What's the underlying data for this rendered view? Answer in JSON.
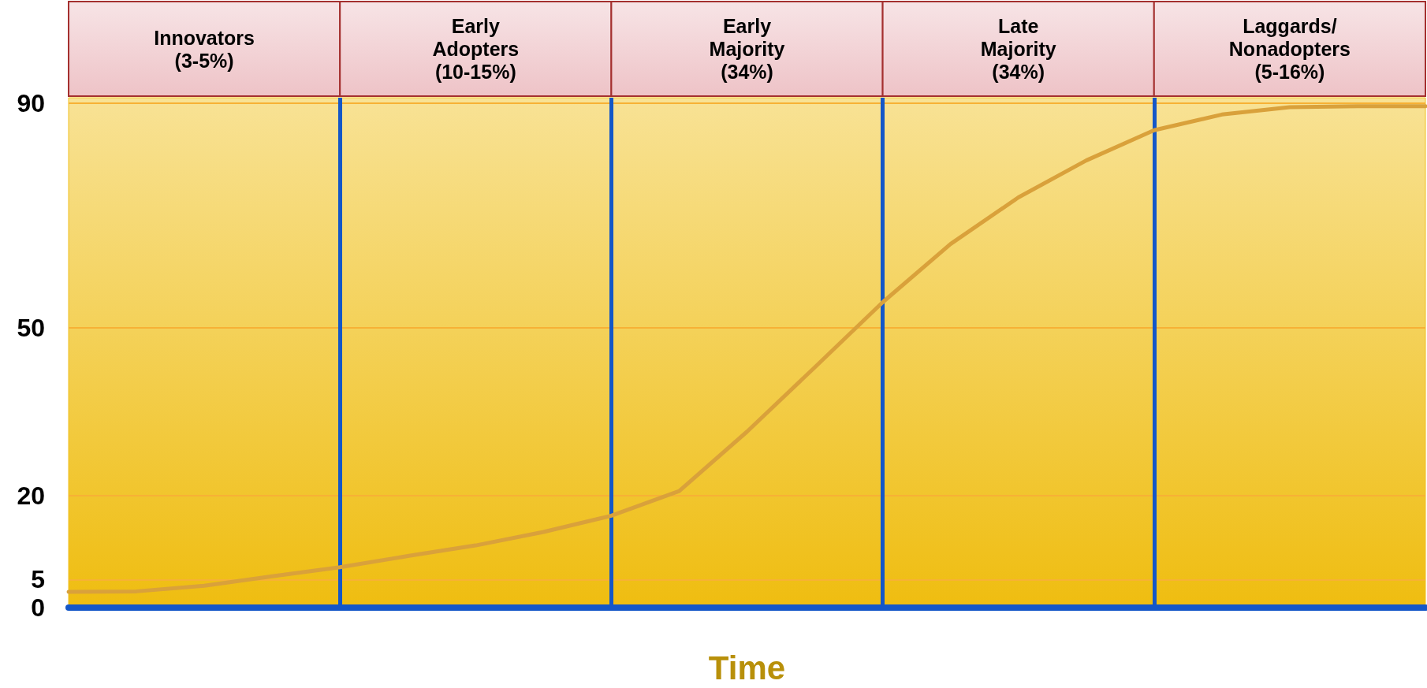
{
  "chart_data": {
    "type": "line",
    "xlabel": "Time",
    "ylim": [
      0,
      91
    ],
    "yticks": [
      0,
      5,
      20,
      50,
      90
    ],
    "tick_labels": "y",
    "grid": true,
    "marker": "none",
    "categories": [
      null,
      null,
      null,
      null,
      null,
      null,
      null,
      null,
      null,
      null,
      null,
      null,
      null,
      null,
      null,
      null,
      null,
      null,
      null,
      null,
      null
    ],
    "series": [
      {
        "color": "#d9a13b",
        "values": [
          2.8,
          2.9,
          3.9,
          5.6,
          7.2,
          9.2,
          11.1,
          13.5,
          16.4,
          20.8,
          31.4,
          42.9,
          54.5,
          64.9,
          73.2,
          79.8,
          85.2,
          88,
          89.3,
          89.5,
          89.5
        ]
      }
    ],
    "annotations": [
      "Innovators\n(3-5%)",
      "Early\nAdopters\n(10-15%)",
      "Early\nMajority\n(34%)",
      "Late\nMajority\n(34%)",
      "Laggards/\nNonadopters\n(5-16%)"
    ]
  }
}
